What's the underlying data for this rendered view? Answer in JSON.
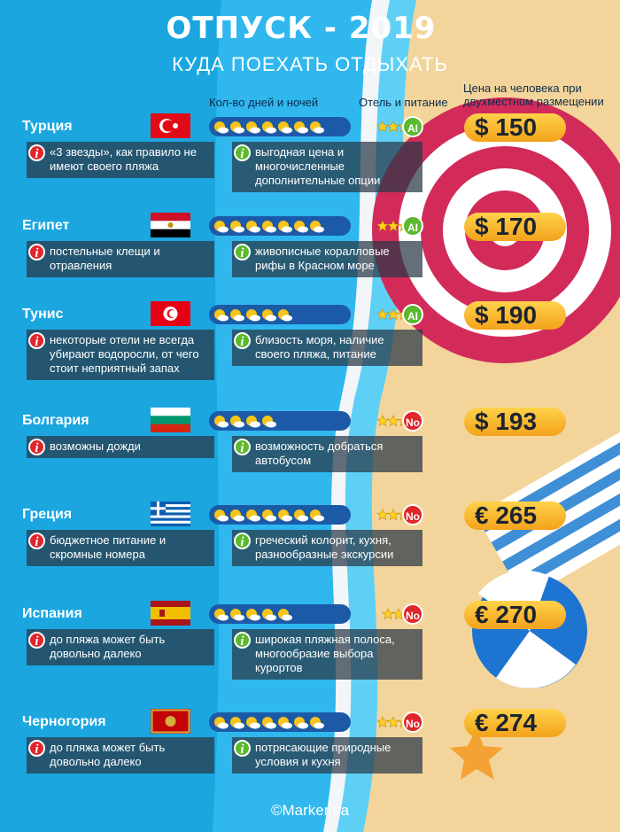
{
  "header": {
    "title": "ОТПУСК - 2019",
    "subtitle": "КУДА ПОЕХАТЬ ОТДЫХАТЬ"
  },
  "columns": {
    "nights": "Кол-во дней и ночей",
    "hotel": "Отель и питание",
    "price": "Цена на человека при двухместном размещении"
  },
  "rows": [
    {
      "country": "Турция",
      "nights": 7,
      "stars": 3,
      "meal": "AI",
      "price": "$ 150",
      "cons": "«3 звезды», как правило не имеют своего пляжа",
      "pros": "выгодная цена и многочисленные дополнительные опции"
    },
    {
      "country": "Египет",
      "nights": 7,
      "stars": 3,
      "meal": "AI",
      "price": "$ 170",
      "cons": "постельные клещи и отравления",
      "pros": "живописные коралловые рифы в Красном море"
    },
    {
      "country": "Тунис",
      "nights": 5,
      "stars": 3,
      "meal": "AI",
      "price": "$ 190",
      "cons": "некоторые отели не всегда убирают водоросли, от чего стоит неприятный запах",
      "pros": "близость моря, наличие своего пляжа, питание"
    },
    {
      "country": "Болгария",
      "nights": 4,
      "stars": 3,
      "meal": "No",
      "price": "$ 193",
      "cons": "возможны дожди",
      "pros": "возможность добраться автобусом"
    },
    {
      "country": "Греция",
      "nights": 7,
      "stars": 3,
      "meal": "No",
      "price": "€ 265",
      "cons": "бюджетное питание и скромные номера",
      "pros": "греческий колорит, кухня, разнообразные экскурсии"
    },
    {
      "country": "Испания",
      "nights": 5,
      "stars": 2,
      "meal": "No",
      "price": "€ 270",
      "cons": "до пляжа может быть довольно далеко",
      "pros": "широкая пляжная полоса, многообразие выбора курортов"
    },
    {
      "country": "Черногория",
      "nights": 7,
      "stars": 3,
      "meal": "No",
      "price": "€ 274",
      "cons": "до пляжа может быть довольно далеко",
      "pros": "потрясающие природные условия и кухня"
    }
  ],
  "footer": "©Marker.ua"
}
